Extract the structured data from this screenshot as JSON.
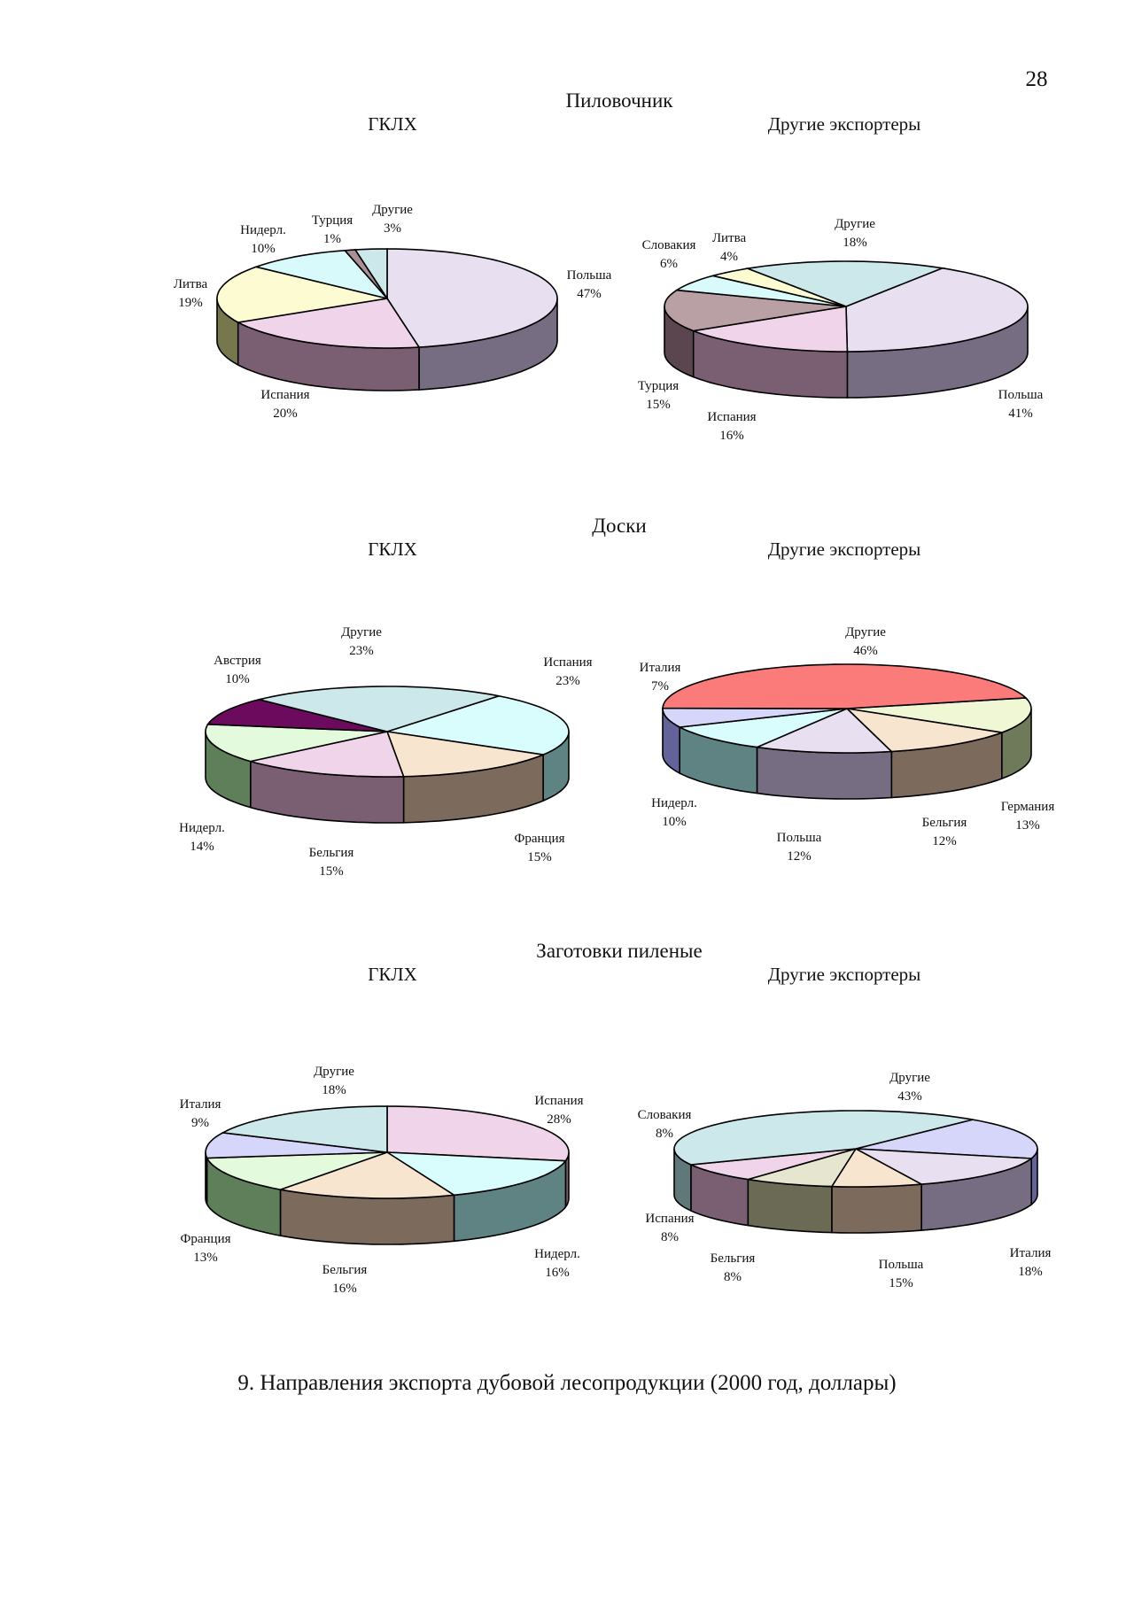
{
  "page_number": "28",
  "figure_caption": "9. Направления экспорта дубовой лесопродукции (2000 год, доллары)",
  "sections": [
    {
      "title": "Пиловочник",
      "left_subtitle": "ГКЛХ",
      "right_subtitle": "Другие экспортеры"
    },
    {
      "title": "Доски",
      "left_subtitle": "ГКЛХ",
      "right_subtitle": "Другие экспортеры"
    },
    {
      "title": "Заготовки пиленые",
      "left_subtitle": "ГКЛХ",
      "right_subtitle": "Другие экспортеры"
    }
  ],
  "chart_data": [
    {
      "type": "pie",
      "section": "Пиловочник",
      "subtitle": "ГКЛХ",
      "slices": [
        {
          "label": "Польша",
          "value": 47,
          "color": "#e8dff0",
          "side": "#776d82"
        },
        {
          "label": "Испания",
          "value": 20,
          "color": "#efd4ea",
          "side": "#7a5f73"
        },
        {
          "label": "Литва",
          "value": 19,
          "color": "#fdfbd2",
          "side": "#77774e"
        },
        {
          "label": "Нидерл.",
          "value": 10,
          "color": "#d9fafa",
          "side": "#5f7e7f"
        },
        {
          "label": "Турция",
          "value": 1,
          "color": "#a98f98",
          "side": "#5b4650"
        },
        {
          "label": "Другие",
          "value": 3,
          "color": "#cde8ea",
          "side": "#607879"
        }
      ]
    },
    {
      "type": "pie",
      "section": "Пиловочник",
      "subtitle": "Другие экспортеры",
      "slices": [
        {
          "label": "Польша",
          "value": 41,
          "color": "#e8dff0",
          "side": "#776d82"
        },
        {
          "label": "Испания",
          "value": 16,
          "color": "#efd4ea",
          "side": "#7a5f73"
        },
        {
          "label": "Турция",
          "value": 15,
          "color": "#b8a0a4",
          "side": "#5b4650"
        },
        {
          "label": "Словакия",
          "value": 6,
          "color": "#d9fafa",
          "side": "#5f7e7f"
        },
        {
          "label": "Литва",
          "value": 4,
          "color": "#fdfbd2",
          "side": "#77774e"
        },
        {
          "label": "Другие",
          "value": 18,
          "color": "#cde8ea",
          "side": "#607879"
        }
      ]
    },
    {
      "type": "pie",
      "section": "Доски",
      "subtitle": "ГКЛХ",
      "slices": [
        {
          "label": "Испания",
          "value": 23,
          "color": "#d9fcfd",
          "side": "#5f8283"
        },
        {
          "label": "Франция",
          "value": 15,
          "color": "#f8e5d0",
          "side": "#7c6a5c"
        },
        {
          "label": "Бельгия",
          "value": 15,
          "color": "#efd4ea",
          "side": "#7a5f73"
        },
        {
          "label": "Нидерл.",
          "value": 14,
          "color": "#e3fbdc",
          "side": "#5f7f5a"
        },
        {
          "label": "Австрия",
          "value": 10,
          "color": "#6c0a5e",
          "side": "#3a0432"
        },
        {
          "label": "Другие",
          "value": 23,
          "color": "#cde8ea",
          "side": "#607879"
        }
      ]
    },
    {
      "type": "pie",
      "section": "Доски",
      "subtitle": "Другие экспортеры",
      "slices": [
        {
          "label": "Германия",
          "value": 13,
          "color": "#f0f7d4",
          "side": "#6f7a5a"
        },
        {
          "label": "Бельгия",
          "value": 12,
          "color": "#f8e5d0",
          "side": "#7c6a5c"
        },
        {
          "label": "Польша",
          "value": 12,
          "color": "#e8dff0",
          "side": "#776d82"
        },
        {
          "label": "Нидерл.",
          "value": 10,
          "color": "#d9fcfd",
          "side": "#5f8283"
        },
        {
          "label": "Италия",
          "value": 7,
          "color": "#d6d6fb",
          "side": "#63639a"
        },
        {
          "label": "Другие",
          "value": 46,
          "color": "#fb7b7b",
          "side": "#8a3b3b"
        }
      ]
    },
    {
      "type": "pie",
      "section": "Заготовки пиленые",
      "subtitle": "ГКЛХ",
      "slices": [
        {
          "label": "Испания",
          "value": 28,
          "color": "#efd4ea",
          "side": "#7a5f73"
        },
        {
          "label": "Нидерл.",
          "value": 16,
          "color": "#d9fcfd",
          "side": "#5f8283"
        },
        {
          "label": "Бельгия",
          "value": 16,
          "color": "#f8e5d0",
          "side": "#7c6a5c"
        },
        {
          "label": "Франция",
          "value": 13,
          "color": "#e3fbdc",
          "side": "#5f7f5a"
        },
        {
          "label": "Италия",
          "value": 9,
          "color": "#d6d6fb",
          "side": "#63639a"
        },
        {
          "label": "Другие",
          "value": 18,
          "color": "#cde8ea",
          "side": "#607879"
        }
      ]
    },
    {
      "type": "pie",
      "section": "Заготовки пиленые",
      "subtitle": "Другие экспортеры",
      "slices": [
        {
          "label": "Италия",
          "value": 18,
          "color": "#d6d6fb",
          "side": "#63639a"
        },
        {
          "label": "Польша",
          "value": 15,
          "color": "#e8dff0",
          "side": "#776d82"
        },
        {
          "label": "Бельгия",
          "value": 8,
          "color": "#f8e5d0",
          "side": "#7c6a5c"
        },
        {
          "label": "Испания",
          "value": 8,
          "color": "#e6e6d0",
          "side": "#6b6b55"
        },
        {
          "label": "Словакия",
          "value": 8,
          "color": "#efd4ea",
          "side": "#7a5f73"
        },
        {
          "label": "Другие",
          "value": 43,
          "color": "#cde8ea",
          "side": "#607879"
        }
      ]
    }
  ]
}
